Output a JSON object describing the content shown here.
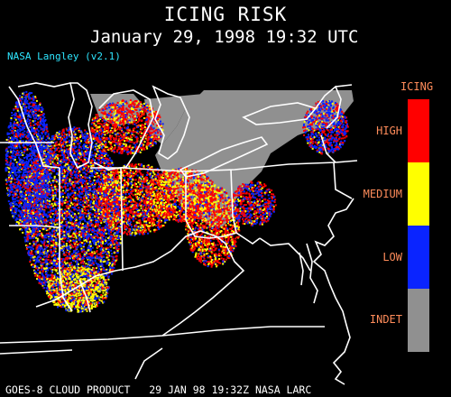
{
  "header": {
    "title": "ICING RISK",
    "subtitle": "January 29, 1998 19:32 UTC",
    "credit": "NASA Langley (v2.1)"
  },
  "legend": {
    "title": "ICING",
    "items": [
      {
        "label": "HIGH",
        "color": "#ff0000"
      },
      {
        "label": "MEDIUM",
        "color": "#ffff00"
      },
      {
        "label": "LOW",
        "color": "#0a24ff"
      },
      {
        "label": "INDET",
        "color": "#909090"
      }
    ]
  },
  "footer": {
    "text": "GOES-8 CLOUD PRODUCT   29 JAN 98 19:32Z NASA LARC"
  }
}
